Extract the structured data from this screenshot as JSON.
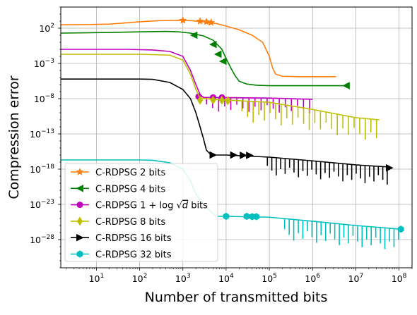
{
  "chart_data": {
    "type": "line",
    "title": "",
    "xlabel": "Number of transmitted bits",
    "ylabel": "Compression error",
    "x_scale": "log",
    "y_scale": "log",
    "xlim": [
      1.5,
      200000000
    ],
    "ylim": [
      1e-32,
      100000.0
    ],
    "grid": true,
    "legend_position": "lower-left",
    "x_ticks": [
      {
        "value": 10,
        "base": "10",
        "exp": "1"
      },
      {
        "value": 100,
        "base": "10",
        "exp": "2"
      },
      {
        "value": 1000,
        "base": "10",
        "exp": "3"
      },
      {
        "value": 10000,
        "base": "10",
        "exp": "4"
      },
      {
        "value": 100000,
        "base": "10",
        "exp": "5"
      },
      {
        "value": 1000000,
        "base": "10",
        "exp": "6"
      },
      {
        "value": 10000000,
        "base": "10",
        "exp": "7"
      },
      {
        "value": 100000000,
        "base": "10",
        "exp": "8"
      }
    ],
    "y_ticks": [
      {
        "value": 100,
        "base": "10",
        "exp": "2"
      },
      {
        "value": 0.001,
        "base": "10",
        "exp": "−3"
      },
      {
        "value": 1e-08,
        "base": "10",
        "exp": "−8"
      },
      {
        "value": 1e-13,
        "base": "10",
        "exp": "−13"
      },
      {
        "value": 1e-18,
        "base": "10",
        "exp": "−18"
      },
      {
        "value": 1e-23,
        "base": "10",
        "exp": "−23"
      },
      {
        "value": 1e-28,
        "base": "10",
        "exp": "−28"
      }
    ],
    "series": [
      {
        "name": "C-RDPSG 2 bits",
        "color": "#ff7f0e",
        "marker": "star",
        "points": [
          [
            1.5,
            300
          ],
          [
            5,
            320
          ],
          [
            20,
            380
          ],
          [
            100,
            800
          ],
          [
            300,
            1200
          ],
          [
            800,
            1300
          ],
          [
            1500,
            1200
          ],
          [
            3000,
            800
          ],
          [
            6000,
            450
          ],
          [
            10000,
            200
          ],
          [
            20000,
            60
          ],
          [
            40000,
            10
          ],
          [
            70000,
            1
          ],
          [
            100000,
            0.01
          ],
          [
            120000,
            0.0002
          ],
          [
            140000,
            3e-05
          ],
          [
            200000,
            1.5e-05
          ],
          [
            500000,
            1.3e-05
          ],
          [
            1000000,
            1.3e-05
          ],
          [
            2000000,
            1.3e-05
          ],
          [
            3500000,
            1.3e-05
          ]
        ],
        "markers": [
          [
            1000,
            1300
          ],
          [
            2500,
            1000
          ],
          [
            3500,
            800
          ],
          [
            4500,
            650
          ]
        ]
      },
      {
        "name": "C-RDPSG 4 bits",
        "color": "#008000",
        "marker": "triangle-left",
        "points": [
          [
            1.5,
            20
          ],
          [
            5,
            22
          ],
          [
            20,
            25
          ],
          [
            100,
            30
          ],
          [
            400,
            35
          ],
          [
            800,
            30
          ],
          [
            1500,
            20
          ],
          [
            3000,
            8
          ],
          [
            5000,
            2
          ],
          [
            8000,
            0.1
          ],
          [
            10000,
            0.005
          ],
          [
            13000,
            0.0002
          ],
          [
            16000,
            2e-05
          ],
          [
            20000,
            3e-06
          ],
          [
            30000,
            1.2e-06
          ],
          [
            50000,
            8e-07
          ],
          [
            100000,
            7e-07
          ],
          [
            1000000,
            7e-07
          ],
          [
            6000000,
            7e-07
          ]
        ],
        "markers": [
          [
            1800,
            10
          ],
          [
            5000,
            0.5
          ],
          [
            6500,
            0.02
          ],
          [
            8500,
            0.002
          ]
        ],
        "end_marker": [
          6000000,
          7e-07
        ]
      },
      {
        "name": "C-RDPSG $1+\\log\\sqrt{d}$ bits",
        "label_prefix": "C-RDPSG 1 + log",
        "label_root": "d",
        "label_suffix": "bits",
        "color": "#bf00bf",
        "marker": "circle",
        "points": [
          [
            1.5,
            0.1
          ],
          [
            10,
            0.1
          ],
          [
            50,
            0.1
          ],
          [
            200,
            0.08
          ],
          [
            500,
            0.05
          ],
          [
            1000,
            0.01
          ],
          [
            1500,
            0.0001
          ],
          [
            2000,
            1e-06
          ],
          [
            2500,
            4e-08
          ],
          [
            3000,
            1.5e-08
          ],
          [
            5000,
            1.5e-08
          ],
          [
            100000,
            1.2e-08
          ],
          [
            1000000,
            8e-09
          ]
        ],
        "markers": [
          [
            2300,
            2e-08
          ],
          [
            5000,
            1.5e-08
          ],
          [
            8000,
            1.5e-08
          ]
        ],
        "spikes": {
          "x_start": 3000,
          "x_end": 1000000,
          "count": 18,
          "depth": 2
        }
      },
      {
        "name": "C-RDPSG 8 bits",
        "color": "#bfbf00",
        "marker": "diamond",
        "points": [
          [
            1.5,
            0.02
          ],
          [
            10,
            0.02
          ],
          [
            100,
            0.02
          ],
          [
            500,
            0.015
          ],
          [
            1000,
            0.003
          ],
          [
            1500,
            3e-05
          ],
          [
            2000,
            2e-07
          ],
          [
            2500,
            1.2e-08
          ],
          [
            5000,
            8e-09
          ],
          [
            100000,
            3e-09
          ],
          [
            1000000,
            3e-10
          ],
          [
            10000000,
            2e-11
          ],
          [
            35000000,
            1e-11
          ]
        ],
        "markers": [
          [
            2500,
            6e-09
          ],
          [
            5000,
            6e-09
          ],
          [
            8000,
            6e-09
          ],
          [
            11000,
            5e-09
          ]
        ],
        "spikes": {
          "x_start": 20000,
          "x_end": 35000000,
          "count": 25,
          "depth": 3
        }
      },
      {
        "name": "C-RDPSG 16 bits",
        "color": "#000000",
        "marker": "triangle-right",
        "points": [
          [
            1.5,
            6e-06
          ],
          [
            10,
            6e-06
          ],
          [
            100,
            6e-06
          ],
          [
            200,
            5.5e-06
          ],
          [
            500,
            2e-06
          ],
          [
            1000,
            2e-07
          ],
          [
            1500,
            1e-08
          ],
          [
            2000,
            1e-10
          ],
          [
            2500,
            1e-12
          ],
          [
            3000,
            2e-14
          ],
          [
            3500,
            5e-16
          ],
          [
            4500,
            1e-16
          ],
          [
            10000,
            1e-16
          ],
          [
            100000,
            5e-17
          ],
          [
            1000000,
            1.5e-17
          ],
          [
            10000000,
            4e-18
          ],
          [
            60000000,
            2e-18
          ]
        ],
        "markers": [
          [
            5000,
            1e-16
          ],
          [
            15000,
            1e-16
          ],
          [
            25000,
            9e-17
          ],
          [
            35000,
            9e-17
          ]
        ],
        "end_marker": [
          60000000,
          1.5e-18
        ],
        "spikes": {
          "x_start": 80000,
          "x_end": 60000000,
          "count": 28,
          "depth": 2.5
        }
      },
      {
        "name": "C-RDPSG 32 bits",
        "color": "#00bfbf",
        "marker": "hexagon",
        "points": [
          [
            1.5,
            2e-17
          ],
          [
            10,
            2e-17
          ],
          [
            100,
            2e-17
          ],
          [
            200,
            1.8e-17
          ],
          [
            500,
            8e-18
          ],
          [
            1000,
            1e-18
          ],
          [
            1500,
            2e-20
          ],
          [
            2000,
            3e-22
          ],
          [
            3000,
            1e-23
          ],
          [
            5000,
            5e-25
          ],
          [
            6000,
            2e-25
          ],
          [
            10000,
            2e-25
          ],
          [
            100000,
            1.5e-25
          ],
          [
            1000000,
            4e-26
          ],
          [
            10000000,
            1e-26
          ],
          [
            110000000,
            3e-27
          ]
        ],
        "markers": [
          [
            10000,
            2e-25
          ],
          [
            30000,
            2e-25
          ],
          [
            40000,
            1.8e-25
          ],
          [
            50000,
            1.8e-25
          ]
        ],
        "end_marker": [
          110000000,
          3e-27
        ],
        "spikes": {
          "x_start": 200000,
          "x_end": 110000000,
          "count": 26,
          "depth": 3
        }
      }
    ]
  }
}
